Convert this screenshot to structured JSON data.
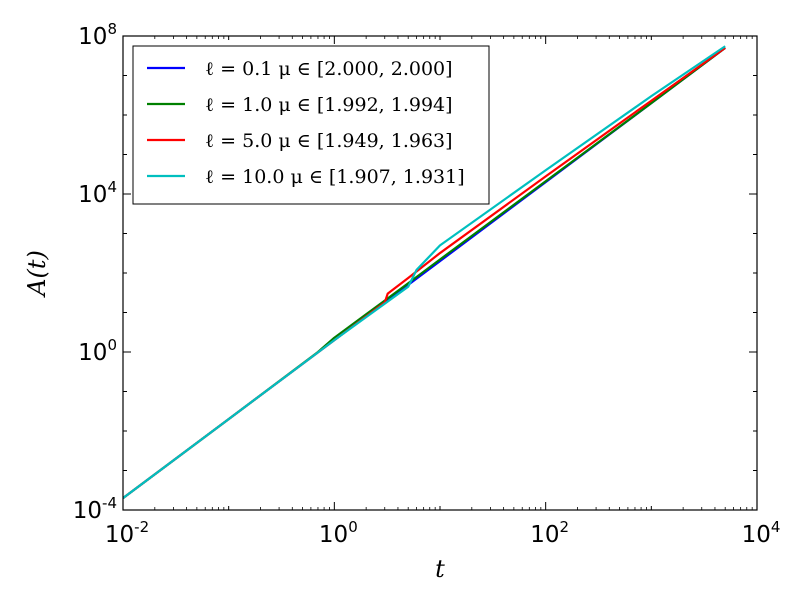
{
  "chart_data": {
    "type": "line",
    "title": "",
    "xlabel": "t",
    "ylabel": "A(t)",
    "xscale": "log",
    "yscale": "log",
    "xlim": [
      0.01,
      10000
    ],
    "ylim": [
      0.0001,
      100000000
    ],
    "grid": false,
    "legend_position": "top-left",
    "x_ticks": [
      {
        "value": 0.01,
        "base": "10",
        "exp": "-2"
      },
      {
        "value": 1,
        "base": "10",
        "exp": "0"
      },
      {
        "value": 100,
        "base": "10",
        "exp": "2"
      },
      {
        "value": 10000,
        "base": "10",
        "exp": "4"
      }
    ],
    "y_ticks": [
      {
        "value": 0.0001,
        "base": "10",
        "exp": "-4"
      },
      {
        "value": 1,
        "base": "10",
        "exp": "0"
      },
      {
        "value": 10000,
        "base": "10",
        "exp": "4"
      },
      {
        "value": 100000000,
        "base": "10",
        "exp": "8"
      }
    ],
    "series": [
      {
        "name": "ℓ = 0.1    μ ∈ [2.000, 2.000]",
        "color": "#0000ff",
        "x": [
          0.01,
          0.1,
          1,
          5,
          10,
          100,
          1000,
          5000
        ],
        "y": [
          0.0002,
          0.02,
          2,
          50,
          200,
          20000,
          2000000,
          50000000
        ]
      },
      {
        "name": "ℓ = 1.0    μ ∈ [1.992, 1.994]",
        "color": "#008000",
        "x": [
          0.01,
          0.1,
          0.7,
          1,
          2,
          5,
          10,
          100,
          1000,
          5000
        ],
        "y": [
          0.0002,
          0.02,
          1,
          2.3,
          9,
          55,
          220,
          21000,
          2000000,
          50000000
        ]
      },
      {
        "name": "ℓ = 5.0    μ ∈ [1.949, 1.963]",
        "color": "#ff0000",
        "x": [
          0.01,
          0.1,
          1,
          3,
          3.2,
          5,
          10,
          100,
          1000,
          5000
        ],
        "y": [
          0.0002,
          0.02,
          2,
          18,
          30,
          75,
          320,
          28000,
          2300000,
          50000000
        ]
      },
      {
        "name": "ℓ = 10.0    μ ∈ [1.907, 1.931]",
        "color": "#00bfbf",
        "x": [
          0.01,
          0.1,
          1,
          5,
          6,
          10,
          100,
          1000,
          5000
        ],
        "y": [
          0.0002,
          0.02,
          2,
          45,
          120,
          500,
          40000,
          3000000,
          55000000
        ]
      }
    ]
  }
}
